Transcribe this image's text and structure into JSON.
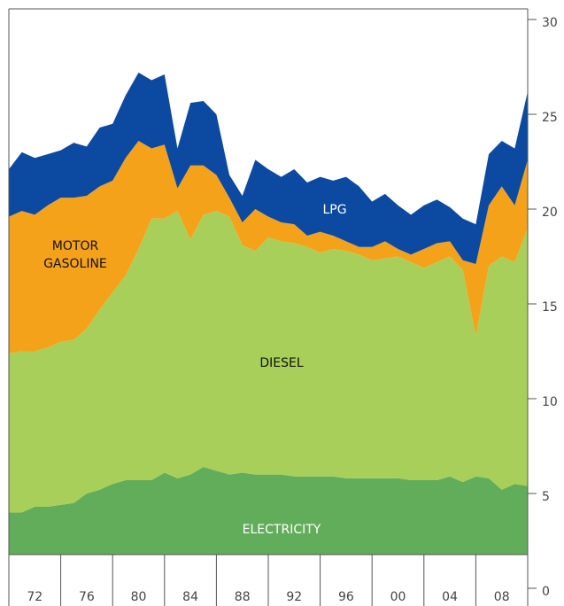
{
  "chart_data": {
    "type": "stacked_area",
    "categories": [
      null,
      null,
      "72",
      null,
      null,
      null,
      "76",
      null,
      null,
      null,
      "80",
      null,
      null,
      null,
      "84",
      null,
      null,
      null,
      "88",
      null,
      null,
      null,
      "92",
      null,
      null,
      null,
      "96",
      null,
      null,
      null,
      "00",
      null,
      null,
      null,
      "04",
      null,
      null,
      null,
      "08",
      null,
      null
    ],
    "series": [
      {
        "name": "ELECTRICITY",
        "color": "#62ad5a",
        "values": [
          4.0,
          4.0,
          4.3,
          4.3,
          4.4,
          4.5,
          5.0,
          5.2,
          5.5,
          5.7,
          5.7,
          5.7,
          6.1,
          5.8,
          6.0,
          6.4,
          6.2,
          6.0,
          6.1,
          6.0,
          6.0,
          6.0,
          5.9,
          5.9,
          5.9,
          5.9,
          5.8,
          5.8,
          5.8,
          5.8,
          5.8,
          5.7,
          5.7,
          5.7,
          5.9,
          5.6,
          5.9,
          5.8,
          5.2,
          5.5,
          5.4
        ]
      },
      {
        "name": "DIESEL",
        "color": "#a8cf5a",
        "values": [
          8.4,
          8.5,
          8.2,
          8.4,
          8.6,
          8.6,
          8.7,
          9.5,
          10.1,
          10.8,
          12.2,
          13.8,
          13.4,
          14.1,
          12.4,
          13.3,
          13.7,
          13.6,
          12.0,
          11.8,
          12.5,
          12.3,
          12.3,
          12.1,
          11.8,
          12.0,
          12.0,
          11.8,
          11.5,
          11.6,
          11.7,
          11.5,
          11.2,
          11.5,
          11.6,
          11.2,
          7.4,
          11.2,
          12.3,
          11.7,
          13.6
        ]
      },
      {
        "name": "MOTOR GASOLINE",
        "color": "#f5a21b",
        "values": [
          7.2,
          7.4,
          7.2,
          7.5,
          7.6,
          7.5,
          7.0,
          6.5,
          5.9,
          6.2,
          5.7,
          3.7,
          3.9,
          1.2,
          3.9,
          2.6,
          1.9,
          1.0,
          1.2,
          2.2,
          1.1,
          1.0,
          1.0,
          0.6,
          1.1,
          0.7,
          0.5,
          0.4,
          0.7,
          0.9,
          0.4,
          0.4,
          1.0,
          1.0,
          0.8,
          0.5,
          3.8,
          3.2,
          3.7,
          3.0,
          3.6
        ]
      },
      {
        "name": "LPG",
        "color": "#0b4aa0",
        "values": [
          2.5,
          3.1,
          3.0,
          2.7,
          2.5,
          2.9,
          2.6,
          3.1,
          3.0,
          3.3,
          3.6,
          3.6,
          3.7,
          2.1,
          3.3,
          3.4,
          3.2,
          1.2,
          1.4,
          2.6,
          2.5,
          2.4,
          2.9,
          2.8,
          2.9,
          2.9,
          3.4,
          3.2,
          2.4,
          2.5,
          2.3,
          2.1,
          2.3,
          2.3,
          1.8,
          2.2,
          2.1,
          2.7,
          2.4,
          3.0,
          3.6
        ]
      }
    ],
    "ylim": [
      0,
      30
    ],
    "yticks": [
      0,
      5,
      10,
      15,
      20,
      25,
      30
    ]
  }
}
